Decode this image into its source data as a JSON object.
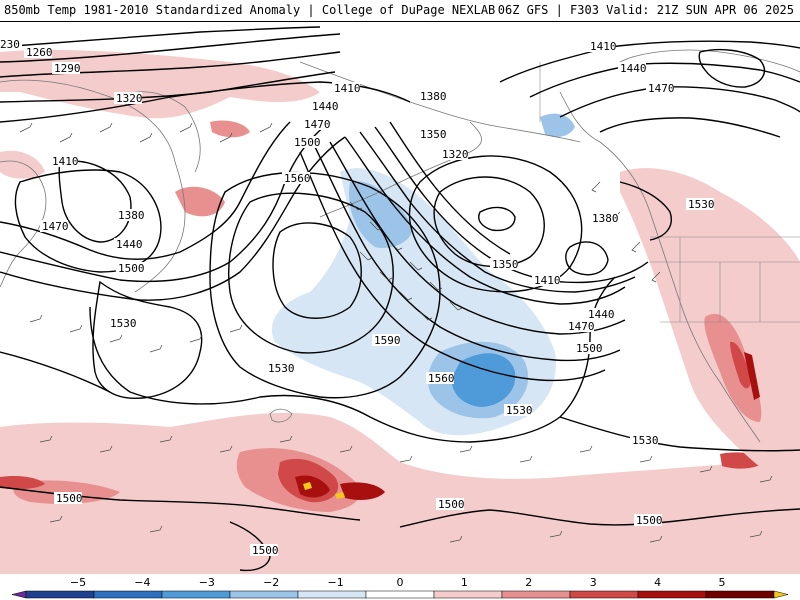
{
  "header": {
    "title_left": "850mb Temp 1981-2010 Standardized Anomaly | College of DuPage NEXLAB",
    "title_right": "06Z GFS | F303 Valid: 21Z SUN APR 06 2025"
  },
  "contour_labels": [
    "230",
    "1260",
    "1290",
    "1320",
    "1410",
    "1380",
    "1440",
    "1470",
    "1500",
    "1530",
    "1560",
    "1410",
    "1440",
    "1470",
    "1500",
    "1380",
    "1350",
    "1320",
    "1410",
    "1440",
    "1470",
    "1530",
    "1380",
    "1350",
    "1410",
    "1440",
    "1470",
    "1500",
    "1590",
    "1530",
    "1560",
    "1530",
    "1530",
    "1500",
    "1500",
    "1500",
    "1500"
  ],
  "legend": {
    "ticks": [
      "-5",
      "-4",
      "-3",
      "-2",
      "-1",
      "0",
      "1",
      "2",
      "3",
      "4",
      "5"
    ],
    "colors": [
      "#6a2c9c",
      "#1f3f8f",
      "#2f6fbf",
      "#4f9ad8",
      "#9cc4e8",
      "#d6e6f4",
      "#ffffff",
      "#f4cccc",
      "#e89090",
      "#d04848",
      "#a81010",
      "#6e0000",
      "#f2c81a"
    ]
  },
  "anomaly_colors": {
    "cold_light": "#d6e6f4",
    "cold_mid": "#9cc4e8",
    "cold_strong": "#4f9ad8",
    "warm_light": "#f4cccc",
    "warm_mid": "#e89090",
    "warm_strong": "#d04848",
    "warm_extreme": "#a81010",
    "warm_max": "#f2c81a"
  }
}
